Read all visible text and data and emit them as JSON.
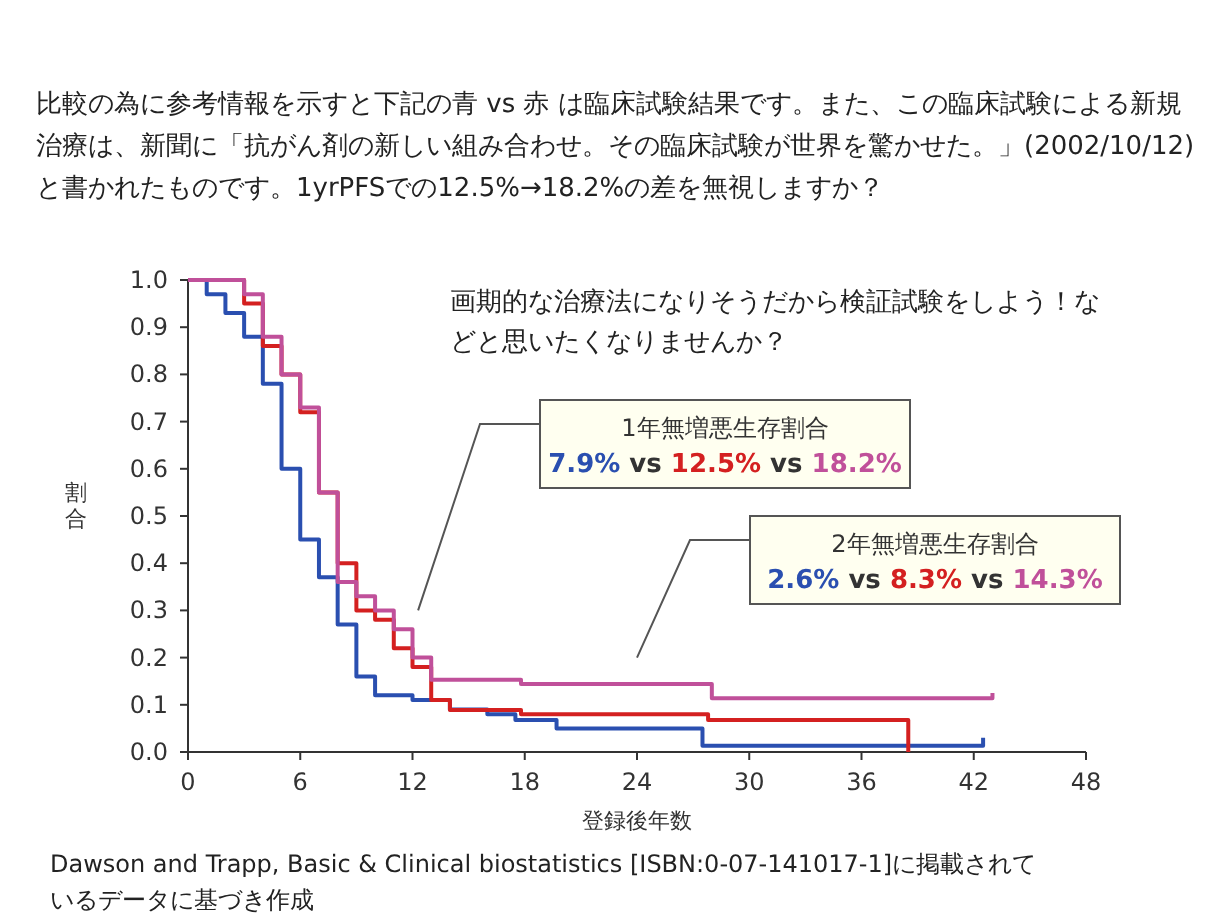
{
  "chart_data": {
    "type": "step",
    "title": "比較の為に参考情報を示すと下記の青 vs 赤 は臨床試験結果です。また、この臨床試験による新規治療は、新聞に「抗がん剤の新しい組み合わせ。その臨床試験が世界を驚かせた。」(2002/10/12)と書かれたものです。1yrPFSでの12.5%→18.2%の差を無視しますか？",
    "xlabel": "登録後年数",
    "ylabel": "割合",
    "xlim": [
      0,
      48
    ],
    "xticks": [
      0,
      6,
      12,
      18,
      24,
      30,
      36,
      42,
      48
    ],
    "ylim": [
      0,
      1
    ],
    "yticks": [
      {
        "value": 0,
        "label": "0.0"
      },
      0.1,
      0.2,
      0.3,
      0.4,
      0.5,
      0.6,
      0.7,
      0.8,
      0.9,
      {
        "value": 1,
        "label": "1.0"
      }
    ],
    "grid": false,
    "series": [
      {
        "color": "#2a4fb0",
        "x": [
          0,
          1,
          2,
          3,
          4,
          5,
          6,
          7,
          8,
          9,
          10,
          12,
          14,
          16,
          17.5,
          19.7,
          27.5,
          42.5
        ],
        "values": [
          1,
          0.97,
          0.93,
          0.88,
          0.78,
          0.6,
          0.45,
          0.37,
          0.27,
          0.16,
          0.12,
          0.11,
          0.09,
          0.08,
          0.068,
          0.05,
          0.013,
          0.03
        ]
      },
      {
        "color": "#d42020",
        "x": [
          0,
          3,
          4,
          5,
          6,
          7,
          8,
          9,
          10,
          11,
          12,
          13,
          14,
          17.8,
          27.8,
          38.5
        ],
        "values": [
          1,
          0.95,
          0.86,
          0.8,
          0.72,
          0.55,
          0.4,
          0.3,
          0.28,
          0.22,
          0.18,
          0.11,
          0.089,
          0.08,
          0.068,
          0
        ]
      },
      {
        "color": "#c0509a",
        "x": [
          0,
          3,
          4,
          5,
          6,
          7,
          8,
          9,
          10,
          11,
          12,
          13,
          17.8,
          28,
          43
        ],
        "values": [
          1,
          0.97,
          0.88,
          0.8,
          0.73,
          0.55,
          0.36,
          0.33,
          0.3,
          0.26,
          0.2,
          0.153,
          0.144,
          0.114,
          0.125
        ]
      }
    ],
    "annotations": [
      "画期的な治療法になりそうだから検証試験をしよう！などと思いたくなりませんか？",
      "1年無増悪生存割合",
      "7.9% vs 12.5% vs 18.2%",
      "2年無増悪生存割合",
      "2.6% vs 8.3% vs 14.3%",
      "Dawson and Trapp, Basic & Clinical biostatistics [ISBN:0-07-141017-1]に掲載されているデータに基づき作成"
    ]
  }
}
